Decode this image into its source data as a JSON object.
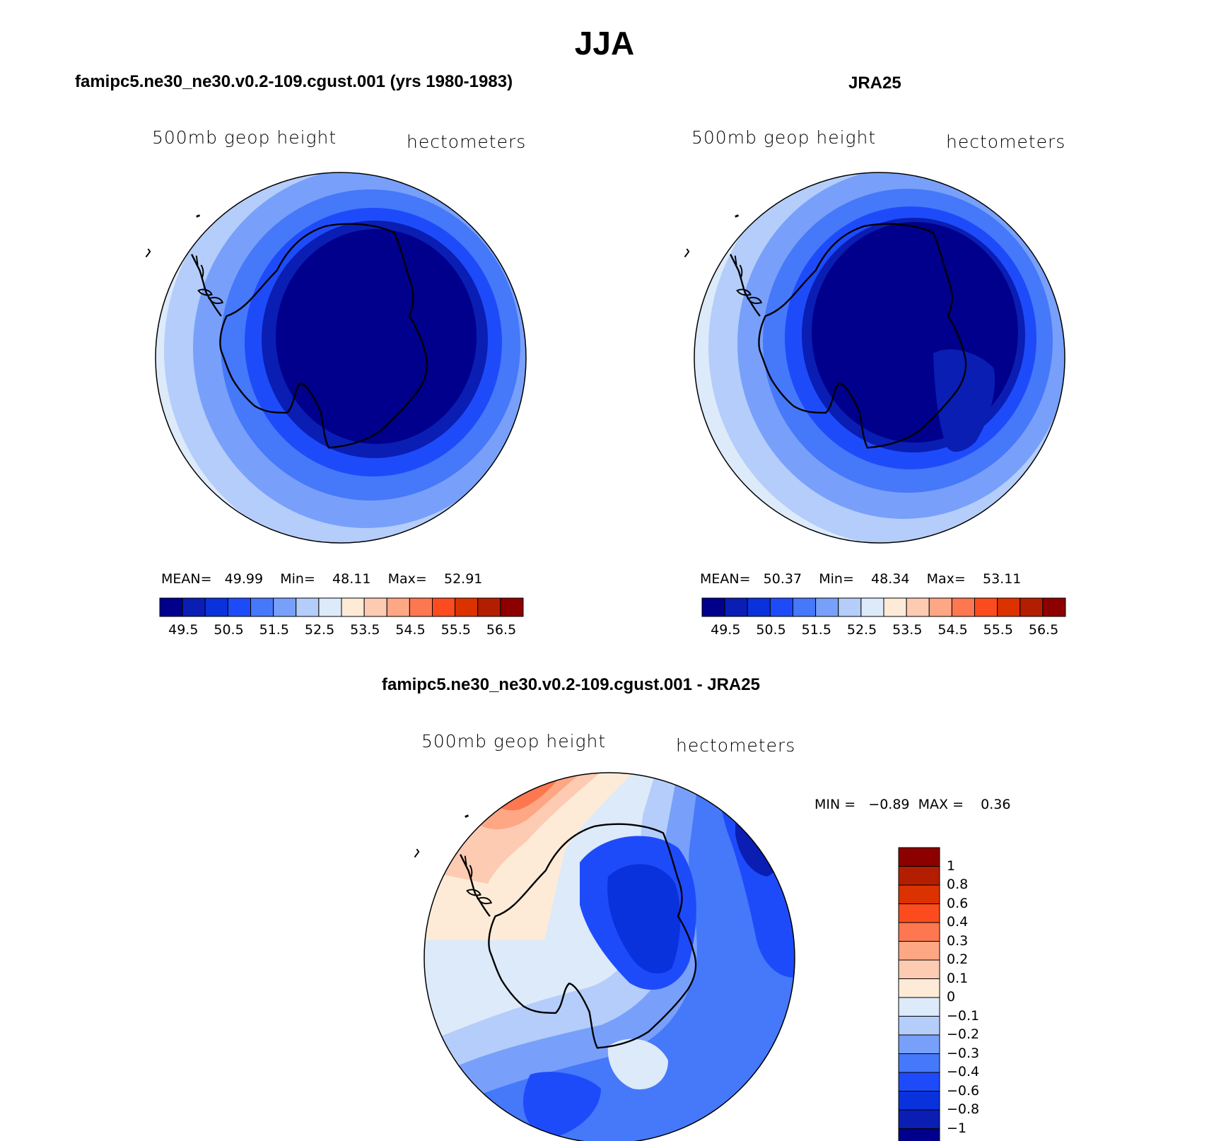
{
  "title": "JJA",
  "panels": [
    {
      "id": "model",
      "title": "famipc5.ne30_ne30.v0.2-109.cgust.001 (yrs 1980-1983)",
      "left_label": "500mb geop height",
      "right_label": "hectometers",
      "stats": {
        "mean_label": "MEAN=",
        "mean": "49.99",
        "min_label": "Min=",
        "min": "48.11",
        "max_label": "Max=",
        "max": "52.91"
      }
    },
    {
      "id": "obs",
      "title": "JRA25",
      "left_label": "500mb geop height",
      "right_label": "hectometers",
      "stats": {
        "mean_label": "MEAN=",
        "mean": "50.37",
        "min_label": "Min=",
        "min": "48.34",
        "max_label": "Max=",
        "max": "53.11"
      }
    },
    {
      "id": "diff",
      "title": "famipc5.ne30_ne30.v0.2-109.cgust.001 - JRA25",
      "left_label": "500mb geop height",
      "right_label": "hectometers",
      "stats": {
        "min_label": "MIN =",
        "min": "−0.89",
        "max_label": "MAX =",
        "max": "0.36"
      }
    }
  ],
  "field_colorbar": {
    "orientation": "horizontal",
    "colors": [
      "#00008c",
      "#0a1eb4",
      "#0a32dc",
      "#1e4bfa",
      "#4678fa",
      "#78a0fa",
      "#b4cdfa",
      "#dceafa",
      "#fdebd8",
      "#fdcbb2",
      "#fda784",
      "#fd7850",
      "#fc4b1e",
      "#dc3200",
      "#b41e00",
      "#8c0000"
    ],
    "tick_labels": [
      "49.5",
      "50.5",
      "51.5",
      "52.5",
      "53.5",
      "54.5",
      "55.5",
      "56.5"
    ]
  },
  "diff_colorbar": {
    "orientation": "vertical",
    "colors": [
      "#00008c",
      "#0a1eb4",
      "#0a32dc",
      "#1e4bfa",
      "#4678fa",
      "#78a0fa",
      "#b4cdfa",
      "#dceafa",
      "#fdebd8",
      "#fdcbb2",
      "#fda784",
      "#fd7850",
      "#fc4b1e",
      "#dc3200",
      "#b41e00",
      "#8c0000"
    ],
    "tick_labels": [
      "−1",
      "−0.8",
      "−0.6",
      "−0.4",
      "−0.3",
      "−0.2",
      "−0.1",
      "0",
      "0.1",
      "0.2",
      "0.3",
      "0.4",
      "0.6",
      "0.8",
      "1"
    ]
  },
  "map": {
    "projection": "south polar stereographic",
    "region": "Antarctica",
    "coastline_color": "#000000"
  }
}
